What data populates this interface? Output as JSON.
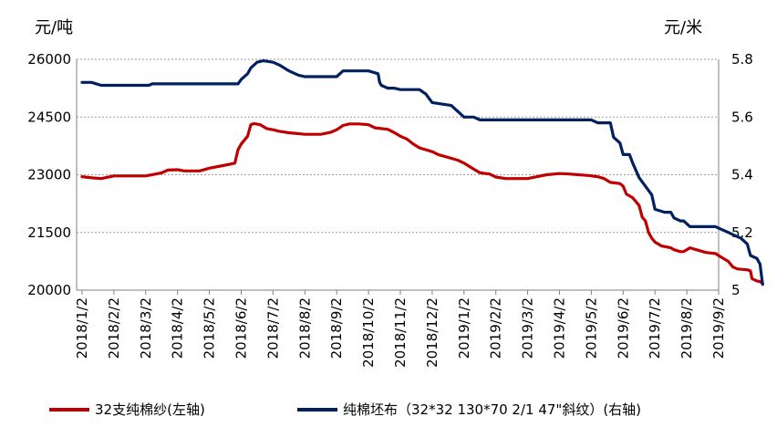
{
  "chart_data": {
    "type": "line",
    "y_left_unit": "元/吨",
    "y_right_unit": "元/米",
    "y_left_range": [
      20000,
      26000
    ],
    "y_left_ticks": [
      "20000",
      "21500",
      "23000",
      "24500",
      "26000"
    ],
    "y_right_range": [
      5.0,
      5.8
    ],
    "y_right_ticks": [
      "5",
      "5.2",
      "5.4",
      "5.6",
      "5.8"
    ],
    "x_ticks": [
      "2018/1/2",
      "2018/2/2",
      "2018/3/2",
      "2018/4/2",
      "2018/5/2",
      "2018/6/2",
      "2018/7/2",
      "2018/8/2",
      "2018/9/2",
      "2018/10/2",
      "2018/11/2",
      "2018/12/2",
      "2019/1/2",
      "2019/2/2",
      "2019/3/2",
      "2019/4/2",
      "2019/5/2",
      "2019/6/2",
      "2019/7/2",
      "2019/8/2",
      "2019/9/2"
    ],
    "grid": "horizontal dashed",
    "legend_position": "bottom",
    "series": [
      {
        "name": "32支纯棉纱(左轴)",
        "axis": "left",
        "color": "#c00000",
        "points": [
          [
            0,
            22950
          ],
          [
            0.3,
            22920
          ],
          [
            0.6,
            22900
          ],
          [
            0.9,
            22950
          ],
          [
            1.0,
            22970
          ],
          [
            1.5,
            22970
          ],
          [
            2.0,
            22970
          ],
          [
            2.5,
            23050
          ],
          [
            2.7,
            23120
          ],
          [
            3.0,
            23130
          ],
          [
            3.2,
            23100
          ],
          [
            3.7,
            23100
          ],
          [
            4.0,
            23170
          ],
          [
            4.5,
            23250
          ],
          [
            4.8,
            23300
          ],
          [
            4.9,
            23650
          ],
          [
            5.0,
            23800
          ],
          [
            5.2,
            24000
          ],
          [
            5.3,
            24300
          ],
          [
            5.4,
            24330
          ],
          [
            5.6,
            24300
          ],
          [
            5.8,
            24200
          ],
          [
            6.0,
            24170
          ],
          [
            6.2,
            24130
          ],
          [
            6.5,
            24090
          ],
          [
            7.0,
            24050
          ],
          [
            7.5,
            24050
          ],
          [
            7.8,
            24100
          ],
          [
            8.0,
            24170
          ],
          [
            8.2,
            24280
          ],
          [
            8.4,
            24320
          ],
          [
            8.7,
            24320
          ],
          [
            9.0,
            24300
          ],
          [
            9.2,
            24220
          ],
          [
            9.6,
            24180
          ],
          [
            9.8,
            24100
          ],
          [
            10.0,
            24000
          ],
          [
            10.2,
            23930
          ],
          [
            10.4,
            23800
          ],
          [
            10.6,
            23700
          ],
          [
            10.8,
            23650
          ],
          [
            11.0,
            23600
          ],
          [
            11.2,
            23520
          ],
          [
            11.5,
            23450
          ],
          [
            11.8,
            23380
          ],
          [
            12.0,
            23300
          ],
          [
            12.2,
            23200
          ],
          [
            12.3,
            23150
          ],
          [
            12.5,
            23050
          ],
          [
            12.8,
            23020
          ],
          [
            13.0,
            22940
          ],
          [
            13.3,
            22900
          ],
          [
            14.0,
            22900
          ],
          [
            14.3,
            22950
          ],
          [
            14.6,
            23000
          ],
          [
            15.0,
            23030
          ],
          [
            15.3,
            23020
          ],
          [
            15.6,
            23000
          ],
          [
            15.9,
            22980
          ],
          [
            16.2,
            22950
          ],
          [
            16.4,
            22900
          ],
          [
            16.6,
            22800
          ],
          [
            16.9,
            22770
          ],
          [
            17.0,
            22700
          ],
          [
            17.1,
            22500
          ],
          [
            17.3,
            22400
          ],
          [
            17.5,
            22200
          ],
          [
            17.6,
            21900
          ],
          [
            17.7,
            21800
          ],
          [
            17.8,
            21500
          ],
          [
            17.9,
            21350
          ],
          [
            18.0,
            21250
          ],
          [
            18.2,
            21150
          ],
          [
            18.5,
            21100
          ],
          [
            18.6,
            21050
          ],
          [
            18.8,
            21000
          ],
          [
            18.9,
            21000
          ],
          [
            19.1,
            21100
          ],
          [
            19.3,
            21050
          ],
          [
            19.6,
            20980
          ],
          [
            19.9,
            20950
          ],
          [
            20.1,
            20850
          ],
          [
            20.3,
            20750
          ],
          [
            20.45,
            20600
          ],
          [
            20.6,
            20550
          ],
          [
            20.9,
            20530
          ],
          [
            21.0,
            20500
          ],
          [
            21.05,
            20300
          ],
          [
            21.2,
            20240
          ],
          [
            21.3,
            20220
          ],
          [
            21.38,
            20180
          ]
        ]
      },
      {
        "name": "纯棉坯布（32*32 130*70 2/1 47\"斜纹）(右轴)",
        "axis": "right",
        "color": "#002060",
        "points": [
          [
            0,
            5.72
          ],
          [
            0.3,
            5.72
          ],
          [
            0.6,
            5.71
          ],
          [
            1.5,
            5.71
          ],
          [
            2.1,
            5.71
          ],
          [
            2.2,
            5.715
          ],
          [
            3.0,
            5.715
          ],
          [
            4.0,
            5.715
          ],
          [
            4.9,
            5.715
          ],
          [
            5.0,
            5.73
          ],
          [
            5.2,
            5.75
          ],
          [
            5.3,
            5.77
          ],
          [
            5.5,
            5.79
          ],
          [
            5.7,
            5.795
          ],
          [
            6.0,
            5.79
          ],
          [
            6.2,
            5.78
          ],
          [
            6.5,
            5.76
          ],
          [
            6.8,
            5.745
          ],
          [
            7.0,
            5.74
          ],
          [
            8.0,
            5.74
          ],
          [
            8.2,
            5.76
          ],
          [
            8.5,
            5.76
          ],
          [
            9.0,
            5.76
          ],
          [
            9.3,
            5.75
          ],
          [
            9.35,
            5.72
          ],
          [
            9.4,
            5.71
          ],
          [
            9.6,
            5.7
          ],
          [
            9.8,
            5.7
          ],
          [
            10.0,
            5.695
          ],
          [
            10.6,
            5.695
          ],
          [
            10.8,
            5.68
          ],
          [
            11.0,
            5.65
          ],
          [
            11.6,
            5.64
          ],
          [
            11.8,
            5.62
          ],
          [
            12.0,
            5.6
          ],
          [
            12.3,
            5.6
          ],
          [
            12.5,
            5.59
          ],
          [
            13.0,
            5.59
          ],
          [
            14.0,
            5.59
          ],
          [
            15.0,
            5.59
          ],
          [
            16.0,
            5.59
          ],
          [
            16.2,
            5.58
          ],
          [
            16.6,
            5.58
          ],
          [
            16.7,
            5.53
          ],
          [
            16.9,
            5.51
          ],
          [
            17.0,
            5.47
          ],
          [
            17.2,
            5.47
          ],
          [
            17.3,
            5.44
          ],
          [
            17.5,
            5.39
          ],
          [
            17.7,
            5.36
          ],
          [
            17.9,
            5.33
          ],
          [
            18.0,
            5.28
          ],
          [
            18.3,
            5.27
          ],
          [
            18.5,
            5.27
          ],
          [
            18.6,
            5.25
          ],
          [
            18.8,
            5.24
          ],
          [
            18.9,
            5.24
          ],
          [
            19.1,
            5.22
          ],
          [
            19.5,
            5.22
          ],
          [
            19.9,
            5.22
          ],
          [
            20.1,
            5.21
          ],
          [
            20.3,
            5.2
          ],
          [
            20.5,
            5.19
          ],
          [
            20.7,
            5.18
          ],
          [
            20.9,
            5.16
          ],
          [
            21.0,
            5.12
          ],
          [
            21.2,
            5.11
          ],
          [
            21.3,
            5.09
          ],
          [
            21.38,
            5.02
          ]
        ]
      }
    ]
  }
}
